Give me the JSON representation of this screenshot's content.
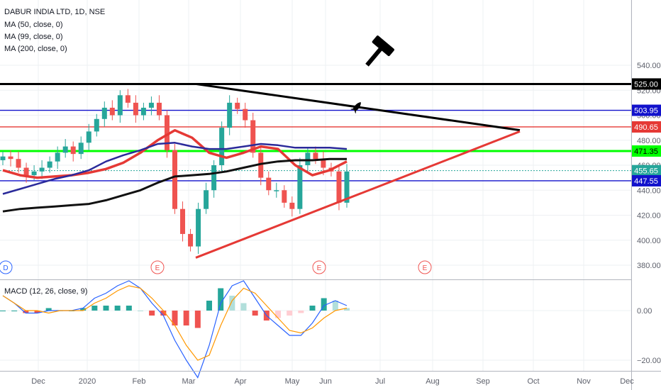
{
  "legend": {
    "symbol": "DABUR INDIA LTD, 1D, NSE",
    "ma1": "MA (50, close, 0)",
    "ma2": "MA (99, close, 0)",
    "ma3": "MA (200, close, 0)",
    "macd": "MACD (12, 26, close, 9)"
  },
  "colors": {
    "up": "#26a69a",
    "down": "#ef5350",
    "ma50": "#e53935",
    "ma99": "#2a2a9a",
    "ma200": "#111111",
    "green_level": "#00ff00",
    "blue_level": "#1212cc",
    "red_level": "#e53935",
    "black_level": "#000000",
    "macd_line": "#2962ff",
    "signal_line": "#ff9800",
    "hist_up": "#26a69a",
    "hist_down": "#ef5350"
  },
  "chart_data": [
    {
      "type": "candlestick",
      "pane": "price",
      "x_axis": {
        "tick_labels": [
          "Dec",
          "2020",
          "Feb",
          "Mar",
          "Apr",
          "May",
          "Jun",
          "Jul",
          "Aug",
          "Sep",
          "Oct",
          "Nov",
          "Dec"
        ]
      },
      "y_axis": {
        "ticks": [
          380,
          400,
          420,
          440,
          460,
          480,
          500,
          520,
          540
        ],
        "range": [
          371,
          540
        ]
      },
      "price_labels": [
        "525.00",
        "503.95",
        "490.65",
        "471.35",
        "455.65",
        "447.55"
      ],
      "horizontal_levels": [
        {
          "value": 525.0,
          "color": "black"
        },
        {
          "value": 503.95,
          "color": "blue"
        },
        {
          "value": 490.65,
          "color": "red"
        },
        {
          "value": 471.35,
          "color": "green"
        },
        {
          "value": 447.55,
          "color": "blue"
        }
      ],
      "last_price": 455.65,
      "trendlines": [
        {
          "name": "upper",
          "from": [
            "Mar",
            525
          ],
          "to": [
            "Sep",
            488
          ]
        },
        {
          "name": "lower",
          "from": [
            "Mar",
            386
          ],
          "to": [
            "Sep",
            487
          ]
        }
      ],
      "event_markers": [
        "D",
        "E",
        "E",
        "E"
      ],
      "series": [
        {
          "name": "MA (50, close, 0)",
          "values": [
            456,
            452,
            450,
            451,
            452,
            454,
            457,
            462,
            470,
            480,
            488,
            482,
            470,
            466,
            470,
            475,
            473,
            460,
            452,
            456,
            463
          ]
        },
        {
          "name": "MA (99, close, 0)",
          "values": [
            437,
            441,
            445,
            449,
            452,
            456,
            463,
            468,
            472,
            477,
            478,
            475,
            473,
            473,
            475,
            477,
            476,
            474,
            474,
            474,
            473
          ]
        },
        {
          "name": "MA (200, close, 0)",
          "values": [
            423,
            425,
            426,
            427,
            428,
            429,
            432,
            436,
            440,
            446,
            451,
            452,
            453,
            455,
            458,
            461,
            463,
            464,
            464,
            465,
            465
          ]
        }
      ],
      "candles_close": [
        467,
        465,
        458,
        452,
        455,
        458,
        463,
        470,
        475,
        469,
        478,
        487,
        497,
        506,
        500,
        516,
        510,
        500,
        506,
        510,
        500,
        472,
        425,
        405,
        395,
        425,
        440,
        460,
        490,
        510,
        505,
        496,
        470,
        450,
        440,
        440,
        430,
        425,
        460,
        470,
        465,
        458,
        455,
        430,
        455
      ]
    },
    {
      "type": "bar",
      "pane": "macd",
      "name": "MACD (12, 26, close, 9)",
      "y_axis": {
        "ticks": [
          -20,
          0
        ],
        "tick_labels": [
          "−20.00",
          "0.00"
        ],
        "range": [
          -28,
          12
        ]
      },
      "series": [
        {
          "name": "MACD",
          "values": [
            6,
            3,
            -1,
            -1,
            0,
            0,
            0,
            1,
            5,
            7,
            10,
            12,
            9,
            3,
            -2,
            -12,
            -20,
            -27,
            -14,
            3,
            10,
            12,
            5,
            -2,
            -6,
            -10,
            -10,
            -5,
            2,
            4,
            2
          ]
        },
        {
          "name": "Signal",
          "values": [
            6,
            3,
            0,
            0,
            -1,
            0,
            0,
            0,
            3,
            5,
            8,
            10,
            9,
            5,
            0,
            -6,
            -14,
            -20,
            -18,
            -6,
            4,
            9,
            7,
            2,
            -3,
            -8,
            -9,
            -7,
            -3,
            0,
            1
          ]
        }
      ]
    }
  ]
}
